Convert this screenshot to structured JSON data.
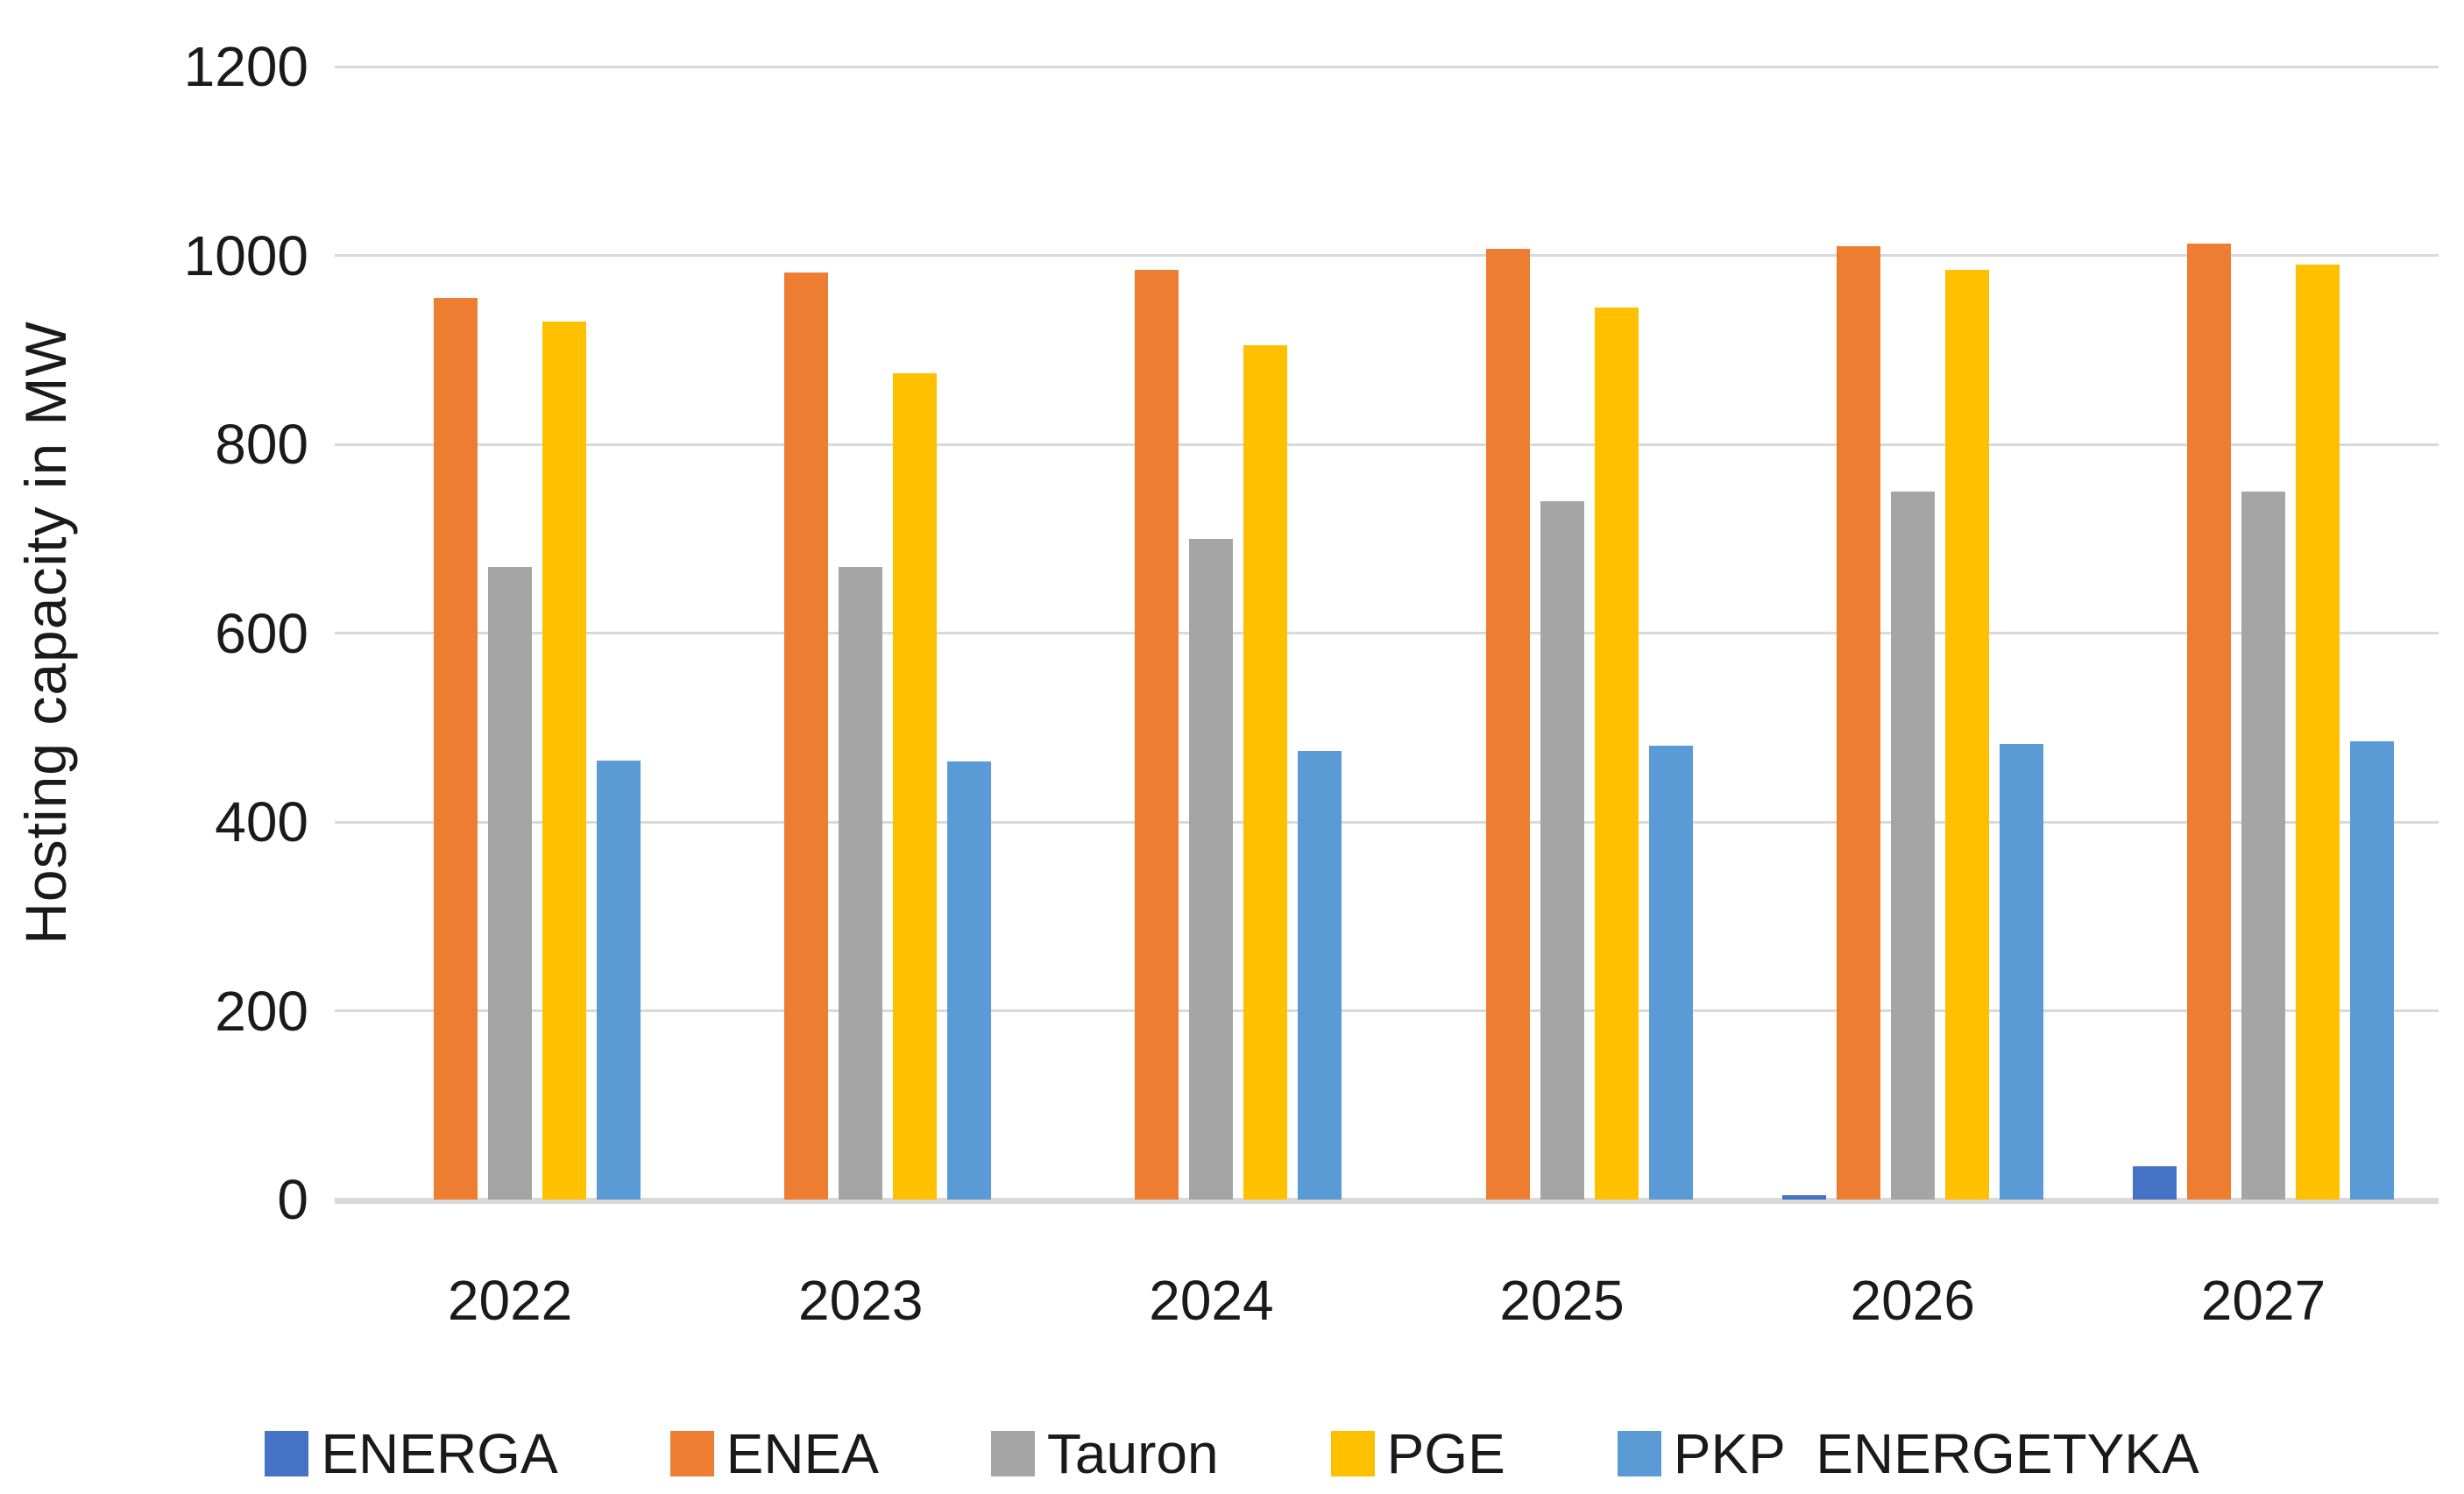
{
  "chart_data": {
    "type": "bar",
    "title": "",
    "xlabel": "",
    "ylabel": "Hosting capacity in MW",
    "ylim": [
      0,
      1200
    ],
    "y_ticks": [
      0,
      200,
      400,
      600,
      800,
      1000,
      1200
    ],
    "grid": true,
    "legend_position": "bottom",
    "categories": [
      "2022",
      "2023",
      "2024",
      "2025",
      "2026",
      "2027"
    ],
    "series": [
      {
        "name": "ENERGA",
        "color": "#4472C4",
        "values": [
          0,
          0,
          0,
          0,
          5,
          35
        ]
      },
      {
        "name": "ENEA",
        "color": "#ED7D31",
        "values": [
          955,
          982,
          985,
          1007,
          1010,
          1013
        ]
      },
      {
        "name": "Tauron",
        "color": "#A5A5A5",
        "values": [
          670,
          670,
          700,
          740,
          750,
          750
        ]
      },
      {
        "name": "PGE",
        "color": "#FFC000",
        "values": [
          930,
          875,
          905,
          945,
          985,
          990
        ]
      },
      {
        "name": "PKP  ENERGETYKA",
        "color": "#5B9BD5",
        "values": [
          465,
          464,
          475,
          481,
          483,
          485
        ]
      }
    ],
    "gridline_color": "#D9D9D9",
    "axis_line_color": "#D9D9D9",
    "text_color": "#1A1A1A"
  }
}
